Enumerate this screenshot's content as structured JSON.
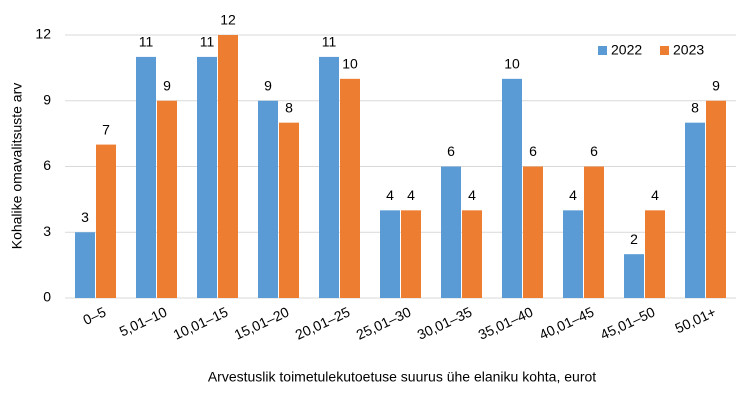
{
  "chart_data": {
    "type": "bar",
    "x_label": "Arvestuslik toimetulekutoetuse suurus ühe elaniku kohta, eurot",
    "y_label": "Kohalike omavalitsuste arv",
    "categories": [
      "0–5",
      "5,01–10",
      "10,01–15",
      "15,01–20",
      "20,01–25",
      "25,01–30",
      "30,01–35",
      "35,01–40",
      "40,01–45",
      "45,01–50",
      "50,01+"
    ],
    "series": [
      {
        "name": "2022",
        "color": "#5b9bd5",
        "values": [
          3,
          11,
          11,
          9,
          11,
          4,
          6,
          10,
          4,
          2,
          8
        ]
      },
      {
        "name": "2023",
        "color": "#ed7d31",
        "values": [
          7,
          9,
          12,
          8,
          10,
          4,
          4,
          6,
          6,
          4,
          9
        ]
      }
    ],
    "ylim": [
      0,
      12
    ],
    "yticks": [
      0,
      3,
      6,
      9,
      12
    ],
    "grid": true,
    "legend": "top-right"
  }
}
